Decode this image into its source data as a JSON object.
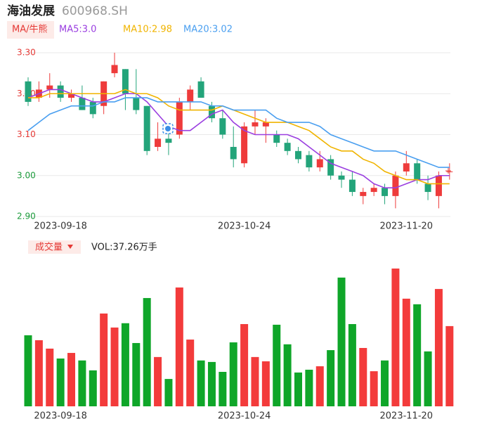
{
  "header": {
    "name": "海油发展",
    "code": "600968.SH",
    "indicator": "MA/牛熊"
  },
  "chart_data": [
    {
      "type": "candlestick",
      "categories": [
        null,
        null,
        null,
        "2023-09-18",
        null,
        null,
        null,
        null,
        null,
        null,
        null,
        null,
        null,
        null,
        null,
        null,
        null,
        null,
        null,
        null,
        "2023-10-24",
        null,
        null,
        null,
        null,
        null,
        null,
        null,
        null,
        null,
        null,
        null,
        null,
        null,
        null,
        "2023-11-20",
        null,
        null,
        null,
        null
      ],
      "open": [
        3.23,
        3.19,
        3.21,
        3.22,
        3.19,
        3.19,
        3.18,
        3.17,
        3.25,
        3.26,
        3.19,
        3.17,
        3.07,
        3.09,
        3.1,
        3.18,
        3.23,
        3.17,
        3.14,
        3.07,
        3.03,
        3.12,
        3.12,
        3.1,
        3.08,
        3.06,
        3.05,
        3.02,
        3.04,
        3.0,
        2.99,
        2.95,
        2.96,
        2.97,
        2.95,
        3.01,
        3.03,
        2.98,
        2.95,
        3.01
      ],
      "high": [
        3.24,
        3.23,
        3.25,
        3.23,
        3.21,
        3.22,
        3.19,
        3.23,
        3.3,
        3.26,
        3.26,
        3.17,
        3.13,
        3.12,
        3.19,
        3.22,
        3.24,
        3.18,
        3.16,
        3.12,
        3.13,
        3.16,
        3.14,
        3.11,
        3.09,
        3.07,
        3.06,
        3.06,
        3.05,
        3.01,
        3.01,
        2.97,
        2.98,
        2.98,
        3.01,
        3.06,
        3.04,
        3.0,
        3.01,
        3.03
      ],
      "low": [
        3.17,
        3.18,
        3.19,
        3.18,
        3.18,
        3.16,
        3.14,
        3.15,
        3.24,
        3.16,
        3.15,
        3.05,
        3.06,
        3.05,
        3.09,
        3.16,
        3.19,
        3.13,
        3.09,
        3.02,
        3.02,
        3.1,
        3.08,
        3.07,
        3.05,
        3.03,
        3.01,
        3.01,
        2.99,
        2.97,
        2.95,
        2.93,
        2.95,
        2.93,
        2.92,
        3.0,
        2.98,
        2.94,
        2.92,
        2.99
      ],
      "close": [
        3.18,
        3.21,
        3.22,
        3.19,
        3.2,
        3.16,
        3.15,
        3.23,
        3.27,
        3.2,
        3.16,
        3.06,
        3.09,
        3.08,
        3.18,
        3.21,
        3.19,
        3.14,
        3.1,
        3.04,
        3.12,
        3.13,
        3.13,
        3.08,
        3.06,
        3.04,
        3.02,
        3.04,
        3.0,
        2.99,
        2.96,
        2.96,
        2.97,
        2.95,
        3.0,
        3.03,
        2.99,
        2.96,
        3.0,
        3.01
      ],
      "up_color": "#ee3b3b",
      "down_color": "#23a47a",
      "series": [
        {
          "name": "MA5:3.0",
          "color": "#9a3ee0",
          "values": [
            3.19,
            3.2,
            3.21,
            3.21,
            3.2,
            3.19,
            3.18,
            3.18,
            3.19,
            3.2,
            3.2,
            3.18,
            3.15,
            3.12,
            3.11,
            3.11,
            3.13,
            3.15,
            3.16,
            3.13,
            3.11,
            3.1,
            3.1,
            3.1,
            3.1,
            3.09,
            3.07,
            3.05,
            3.03,
            3.02,
            3.01,
            3.0,
            2.98,
            2.97,
            2.97,
            2.98,
            2.99,
            2.99,
            3.0,
            3.0
          ]
        },
        {
          "name": "MA10:2.98",
          "color": "#f0b400",
          "values": [
            3.19,
            3.19,
            3.2,
            3.2,
            3.2,
            3.2,
            3.2,
            3.2,
            3.2,
            3.21,
            3.2,
            3.2,
            3.19,
            3.17,
            3.16,
            3.16,
            3.16,
            3.16,
            3.17,
            3.16,
            3.15,
            3.14,
            3.13,
            3.13,
            3.13,
            3.12,
            3.11,
            3.09,
            3.07,
            3.06,
            3.06,
            3.04,
            3.03,
            3.01,
            3.0,
            2.99,
            2.99,
            2.98,
            2.98,
            2.98
          ]
        },
        {
          "name": "MA20:3.02",
          "color": "#4a9ff0",
          "values": [
            3.11,
            3.13,
            3.15,
            3.16,
            3.17,
            3.17,
            3.17,
            3.18,
            3.18,
            3.19,
            3.19,
            3.19,
            3.18,
            3.18,
            3.18,
            3.18,
            3.18,
            3.17,
            3.17,
            3.16,
            3.16,
            3.16,
            3.16,
            3.14,
            3.13,
            3.13,
            3.13,
            3.12,
            3.1,
            3.09,
            3.08,
            3.07,
            3.06,
            3.06,
            3.06,
            3.05,
            3.04,
            3.03,
            3.02,
            3.02
          ]
        }
      ],
      "ylim": [
        2.9,
        3.3
      ],
      "yticks": [
        {
          "value": 3.3,
          "label": "3.30"
        },
        {
          "value": 3.2,
          "label": "3.20"
        },
        {
          "value": 3.1,
          "label": "3.10"
        },
        {
          "value": 3.0,
          "label": "3.00"
        },
        {
          "value": 2.9,
          "label": "2.90"
        }
      ],
      "grid": true
    },
    {
      "type": "bar",
      "title": "成交量",
      "subtitle": "VOL:37.26万手",
      "values": [
        33,
        30.7,
        26.8,
        22.2,
        24.8,
        21.3,
        16.7,
        43.1,
        36.6,
        38.6,
        29.4,
        50.3,
        22.9,
        12.7,
        55.2,
        31,
        21.3,
        20.6,
        16,
        29.7,
        38.2,
        22.9,
        20.9,
        37.9,
        28.8,
        15.7,
        17,
        18.6,
        26.1,
        59.8,
        38.2,
        27.1,
        16.3,
        21.3,
        64,
        50,
        47.4,
        25.5,
        54.5,
        37.26
      ],
      "colors": [
        "#0fa629",
        "#f33b3b",
        "#f33b3b",
        "#0fa629",
        "#f33b3b",
        "#0fa629",
        "#0fa629",
        "#f33b3b",
        "#f33b3b",
        "#0fa629",
        "#0fa629",
        "#0fa629",
        "#f33b3b",
        "#0fa629",
        "#f33b3b",
        "#f33b3b",
        "#0fa629",
        "#0fa629",
        "#0fa629",
        "#0fa629",
        "#f33b3b",
        "#f33b3b",
        "#f33b3b",
        "#0fa629",
        "#0fa629",
        "#0fa629",
        "#0fa629",
        "#f33b3b",
        "#0fa629",
        "#0fa629",
        "#0fa629",
        "#f33b3b",
        "#f33b3b",
        "#0fa629",
        "#f33b3b",
        "#f33b3b",
        "#0fa629",
        "#0fa629",
        "#f33b3b",
        "#f33b3b"
      ]
    }
  ]
}
